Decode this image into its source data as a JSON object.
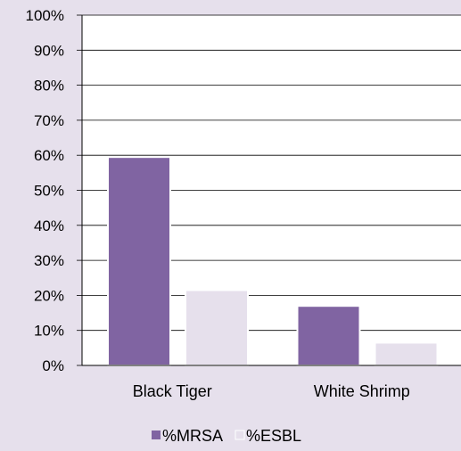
{
  "colors": {
    "background": "#e6e0ec",
    "plot_background": "#ffffff",
    "gridline": "#000000",
    "mrsa": "#8064a2",
    "esbl": "#e6e0ec"
  },
  "chart_data": {
    "type": "bar",
    "categories": [
      "Black Tiger",
      "White Shrimp"
    ],
    "series": [
      {
        "name": "%MRSA",
        "values": [
          59.5,
          17
        ]
      },
      {
        "name": "%ESBL",
        "values": [
          21.5,
          6.5
        ]
      }
    ],
    "yticks": [
      "0%",
      "10%",
      "20%",
      "30%",
      "40%",
      "50%",
      "60%",
      "70%",
      "80%",
      "90%",
      "100%"
    ],
    "ylim": [
      0,
      100
    ],
    "y_unit": "%",
    "title": "",
    "xlabel": "",
    "ylabel": "",
    "grid": true,
    "legend_position": "bottom"
  }
}
